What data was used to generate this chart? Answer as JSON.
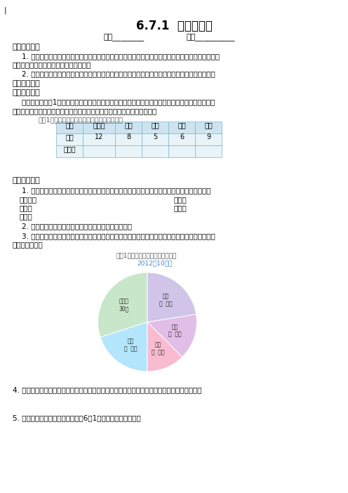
{
  "title": "6.7.1  扇形统计图",
  "class_name_line1": "班级________",
  "class_name_line2": "姓名__________",
  "section1_header": "【学习目标】",
  "section1_item1": "    1. 通过实际问题认识扇形统计图的含义和特点，会用扇形统计图表示数据，能从扇形统计图中获取正",
  "section1_item1b": "确的信息，并能作出合理的解释和推断。",
  "section1_item2": "    2. 在具体情景中，通过收集数据，整理数据，分析数据，作出决策，发展学生的数感和统计观念。",
  "section2_header": "【学习过程】",
  "section_yi": "一、问题导入",
  "intro_text1": "    出示场景：六（1）班同学正在体育活动，他们做什么？你知道他们班最喜欢的运动是什么吗？怎样",
  "intro_text2": "才能知道呢？仔细观察这个表，从这个表中你能知道哪些信息呢？说一说。",
  "table_caption": "六（1）班同学最喜欢运动项目的情况如下表：",
  "table_headers": [
    "项目",
    "乒乓球",
    "足球",
    "跳绳",
    "踢毽",
    "其他"
  ],
  "table_row1_label": "人数",
  "table_row1_values": [
    "12",
    "8",
    "5",
    "6",
    "9"
  ],
  "table_row2_label": "百分比",
  "table_row2_values": [
    "",
    "",
    "",
    "",
    ""
  ],
  "section_er": "二、自主探究",
  "explore1": "    1. 根据统计表计算出最喜欢的各种体育项目的人数占全班总人数的百分比（可用计算器计算）。",
  "explore1a": "乒乓球：",
  "explore1b": "足球：",
  "explore1c": "跳绳：",
  "explore1d": "踢毽：",
  "explore1e": "其他：",
  "explore2": "    2. 思考：从统计表中，还有哪些信息不容易表示出来？",
  "explore3a": "    3. 如果要更清楚地了解各部分数量同总数之间的关系，可以用扇形统计图表示。组织学生把计算的",
  "explore3b": "结果填到图中。",
  "pie_chart_title": "六（1）班最喜欢的运动项目统计图",
  "pie_chart_date": "2012年10月份",
  "pie_label_qpq": "乒乓球\n30％",
  "pie_label_zq": "足球\n（  ）％",
  "pie_label_ts": "跳绳\n（  ）％",
  "pie_label_tj": "踢毽\n（  ）％",
  "pie_label_qt": "其他\n（  ）％",
  "pie_sizes": [
    30,
    20,
    12.5,
    15,
    22.5
  ],
  "pie_colors": [
    "#c8e6c9",
    "#b3e5fc",
    "#f8bbd0",
    "#e1bee7",
    "#d1c4e9"
  ],
  "explore4": "4. 想一想，你们能说说从扇形统计图中可以了解到什么信息，它与象形统计图相比有什么不同？",
  "explore5": "5. 根据统计图上表示的情况，你对6（1）班同学有哪些建议？",
  "bg_color": "#ffffff",
  "table_header_color": "#cde4f0",
  "table_body_color": "#e8f4f8",
  "table_border_color": "#7ab5d4",
  "pie_title_color": "#555555",
  "pie_date_color": "#4488cc"
}
